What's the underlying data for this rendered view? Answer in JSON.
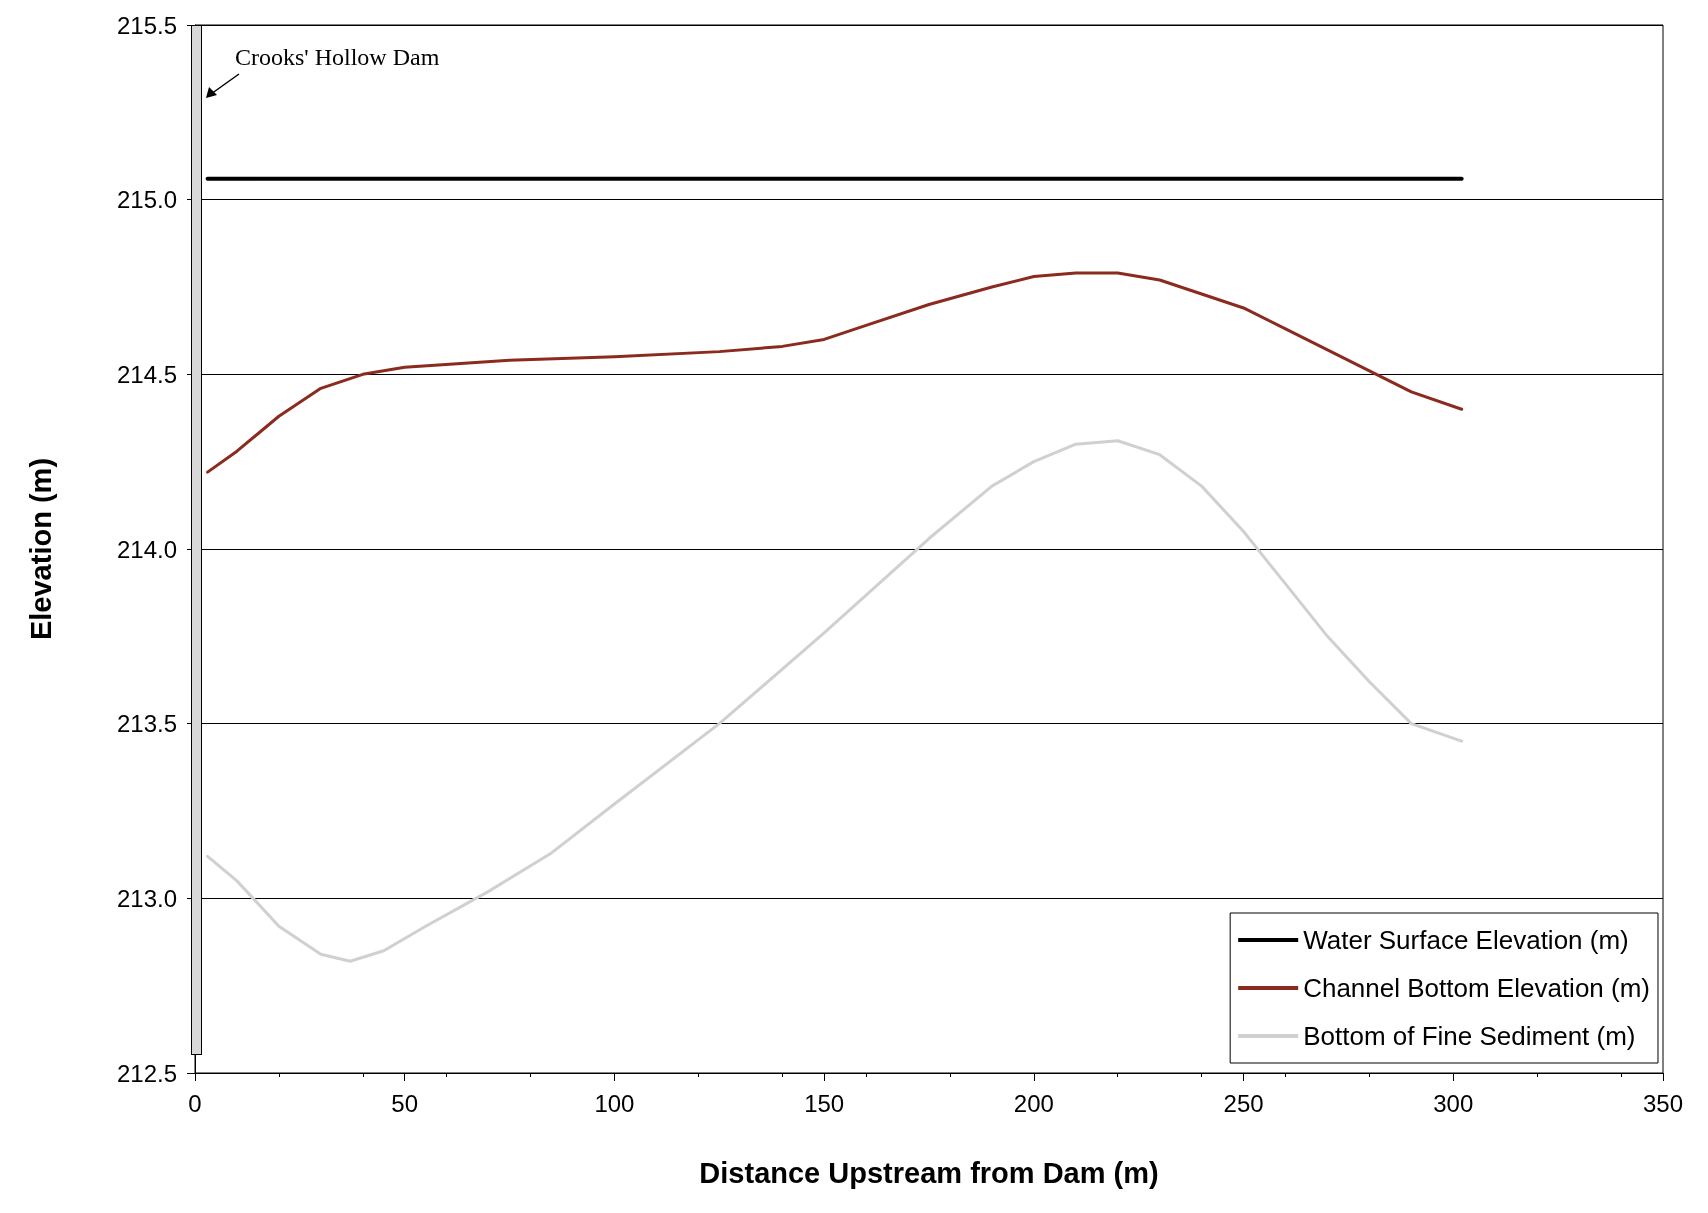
{
  "chart_data": {
    "type": "line",
    "xlabel": "Distance Upstream from Dam (m)",
    "ylabel": "Elevation (m)",
    "annotations": [
      "Crooks' Hollow Dam"
    ],
    "xlim": [
      0,
      350
    ],
    "xticks": [
      0,
      50,
      100,
      150,
      200,
      250,
      300,
      350
    ],
    "ylim": [
      212.5,
      215.5
    ],
    "yticks": [
      {
        "value": 212.5,
        "label": "212.5"
      },
      {
        "value": 213,
        "label": "213.0"
      },
      {
        "value": 213.5,
        "label": "213.5"
      },
      {
        "value": 214,
        "label": "214.0"
      },
      {
        "value": 214.5,
        "label": "214.5"
      },
      {
        "value": 215,
        "label": "215.0"
      },
      {
        "value": 215.5,
        "label": "215.5"
      }
    ],
    "grid": "y",
    "legend": "bottom right",
    "marker": "none",
    "line_style": "solid",
    "series": [
      {
        "name": "Water Surface Elevation (m)",
        "color": "#000000",
        "x": [
          3,
          302
        ],
        "values": [
          215.06,
          215.06
        ]
      },
      {
        "name": "Channel Bottom Elevation (m)",
        "color": "#8b2a1e",
        "x": [
          3,
          10,
          20,
          30,
          40,
          50,
          75,
          100,
          125,
          140,
          150,
          160,
          175,
          190,
          200,
          210,
          220,
          230,
          240,
          250,
          260,
          270,
          280,
          290,
          302
        ],
        "values": [
          214.22,
          214.28,
          214.38,
          214.46,
          214.5,
          214.52,
          214.54,
          214.55,
          214.565,
          214.58,
          214.6,
          214.64,
          214.7,
          214.75,
          214.78,
          214.79,
          214.79,
          214.77,
          214.73,
          214.69,
          214.63,
          214.57,
          214.51,
          214.45,
          214.4
        ]
      },
      {
        "name": "Bottom of Fine Sediment (m)",
        "color": "#d0d0d0",
        "x": [
          3,
          10,
          20,
          30,
          37,
          45,
          55,
          70,
          85,
          100,
          125,
          150,
          175,
          190,
          200,
          210,
          220,
          230,
          240,
          250,
          260,
          270,
          280,
          290,
          302
        ],
        "values": [
          213.12,
          213.05,
          212.92,
          212.84,
          212.82,
          212.85,
          212.92,
          213.02,
          213.13,
          213.27,
          213.5,
          213.76,
          214.03,
          214.18,
          214.25,
          214.3,
          214.31,
          214.27,
          214.18,
          214.05,
          213.9,
          213.75,
          213.62,
          213.5,
          213.45
        ]
      }
    ]
  }
}
